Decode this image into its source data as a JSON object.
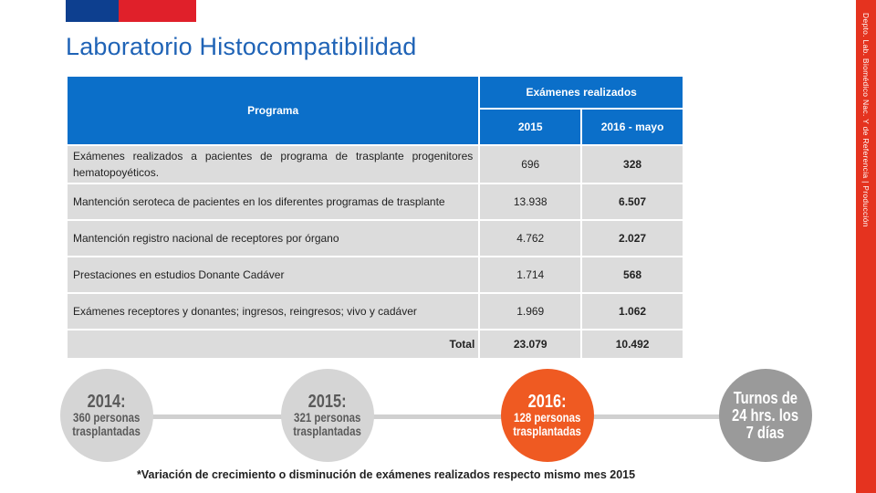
{
  "title": "Laboratorio Histocompatibilidad",
  "sidebar_text": "Depto. Lab. Biomédico Nac. Y de Referencia | Producción",
  "colors": {
    "accent_blue": "#0b6fc9",
    "title_blue": "#1f63b6",
    "sidebar_red": "#e5331f",
    "highlight_orange": "#ef5a22"
  },
  "table": {
    "header_programa": "Programa",
    "header_examenes": "Exámenes realizados",
    "header_2015": "2015",
    "header_2016": "2016 - mayo",
    "rows": [
      {
        "desc": "Exámenes realizados a pacientes de programa de trasplante progenitores hematopoyéticos.",
        "v2015": "696",
        "v2016": "328"
      },
      {
        "desc": "Mantención seroteca de pacientes en los diferentes programas de trasplante",
        "v2015": "13.938",
        "v2016": "6.507"
      },
      {
        "desc": "Mantención registro nacional de receptores por órgano",
        "v2015": "4.762",
        "v2016": "2.027"
      },
      {
        "desc": "Prestaciones en estudios Donante Cadáver",
        "v2015": "1.714",
        "v2016": "568"
      },
      {
        "desc": "Exámenes receptores y donantes; ingresos, reingresos; vivo y cadáver",
        "v2015": "1.969",
        "v2016": "1.062"
      }
    ],
    "total_label": "Total",
    "total_2015": "23.079",
    "total_2016": "10.492"
  },
  "timeline": [
    {
      "year": "2014:",
      "line1": "360 personas",
      "line2": "trasplantadas"
    },
    {
      "year": "2015:",
      "line1": "321 personas",
      "line2": "trasplantadas"
    },
    {
      "year": "2016:",
      "line1": "128 personas",
      "line2": "trasplantadas"
    }
  ],
  "shifts": {
    "line1": "Turnos de",
    "line2": "24 hrs. los",
    "line3": "7 días"
  },
  "footnote": "*Variación de crecimiento o disminución de exámenes realizados respecto mismo mes 2015"
}
